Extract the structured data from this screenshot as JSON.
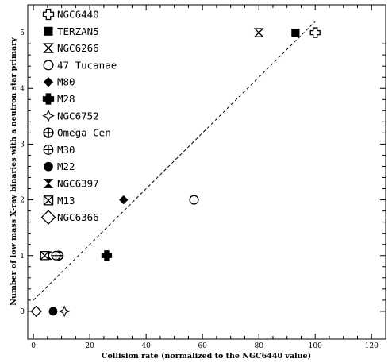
{
  "chart_data": {
    "type": "scatter",
    "xlabel": "Collision rate (normalized to the NGC6440 value)",
    "ylabel": "Number of low mass X-ray binaries with a neutron star primary",
    "xlim": [
      -2,
      125
    ],
    "ylim": [
      -0.5,
      5.5
    ],
    "xticks": [
      0,
      20,
      40,
      60,
      80,
      100,
      120
    ],
    "yticks": [
      0,
      1,
      2,
      3,
      4,
      5
    ],
    "grid": false,
    "legend_position": "top-left",
    "fit_line": {
      "style": "dashed",
      "x": [
        0,
        100
      ],
      "y": [
        0.2,
        5.2
      ]
    },
    "series": [
      {
        "name": "NGC6440",
        "marker": "open-cross",
        "points": [
          [
            100,
            5
          ]
        ]
      },
      {
        "name": "TERZAN5",
        "marker": "filled-square",
        "points": [
          [
            93,
            5
          ]
        ]
      },
      {
        "name": "NGC6266",
        "marker": "hourglass-open",
        "points": [
          [
            80,
            5
          ]
        ]
      },
      {
        "name": "47 Tucanae",
        "marker": "open-circle",
        "points": [
          [
            57,
            2
          ]
        ]
      },
      {
        "name": "M80",
        "marker": "filled-diamond",
        "points": [
          [
            32,
            2
          ]
        ]
      },
      {
        "name": "M28",
        "marker": "filled-cross",
        "points": [
          [
            26,
            1
          ]
        ]
      },
      {
        "name": "NGC6752",
        "marker": "open-star",
        "points": [
          [
            11,
            0
          ]
        ]
      },
      {
        "name": "Omega Cen",
        "marker": "circle-plus-bold",
        "points": [
          [
            9,
            1
          ]
        ]
      },
      {
        "name": "M30",
        "marker": "circle-plus",
        "points": [
          [
            8,
            1
          ]
        ]
      },
      {
        "name": "M22",
        "marker": "filled-circle",
        "points": [
          [
            7,
            0
          ]
        ]
      },
      {
        "name": "NGC6397",
        "marker": "hourglass-filled",
        "points": [
          [
            5,
            1
          ]
        ]
      },
      {
        "name": "M13",
        "marker": "box-x",
        "points": [
          [
            4,
            1
          ]
        ]
      },
      {
        "name": "NGC6366",
        "marker": "open-diamond",
        "points": [
          [
            1,
            0
          ]
        ]
      }
    ]
  }
}
